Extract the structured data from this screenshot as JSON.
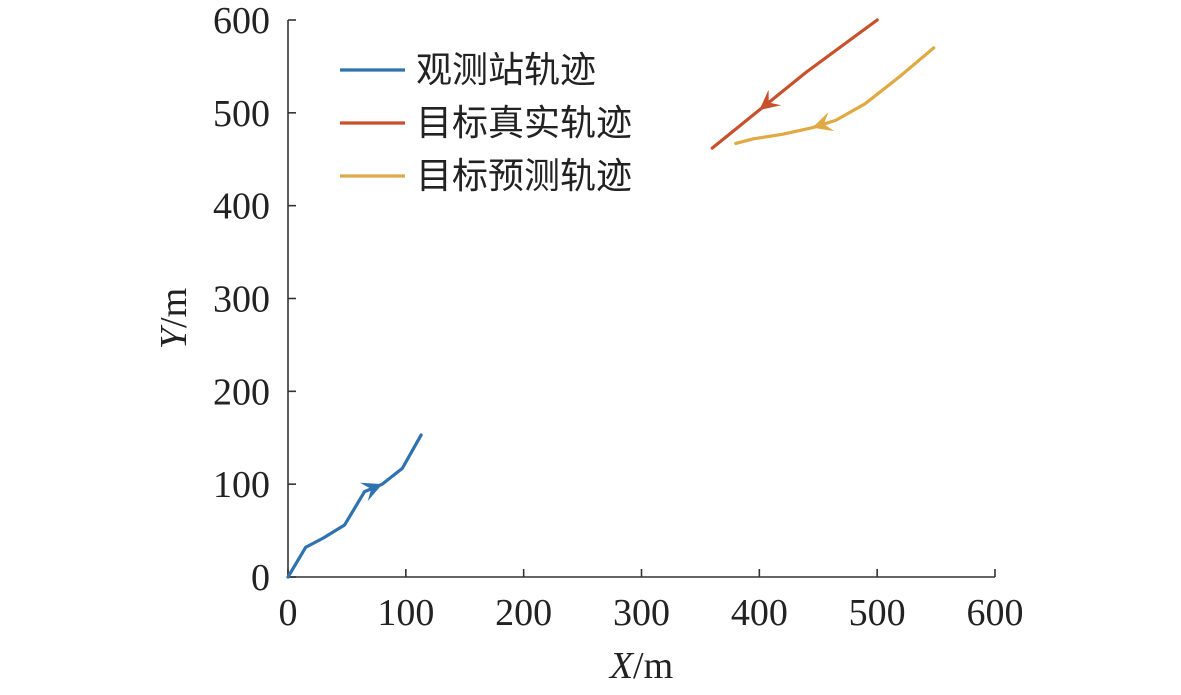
{
  "chart_data": {
    "type": "line",
    "xlabel": {
      "italic": "X",
      "unit": "/m"
    },
    "ylabel": {
      "italic": "Y",
      "unit": "/m"
    },
    "xlim": [
      0,
      600
    ],
    "ylim": [
      0,
      600
    ],
    "xticks": [
      "0",
      "100",
      "200",
      "300",
      "400",
      "500",
      "600"
    ],
    "yticks": [
      "0",
      "100",
      "200",
      "300",
      "400",
      "500",
      "600"
    ],
    "grid": false,
    "legend_position": "top-left",
    "series": [
      {
        "name": "观测站轨迹",
        "color": "#2e72b0",
        "x": [
          0,
          15,
          30,
          48,
          65,
          80,
          97,
          105,
          113
        ],
        "y": [
          0,
          32,
          42,
          56,
          92,
          100,
          117,
          135,
          153
        ],
        "arrow": {
          "at_index": 5,
          "direction": "forward"
        }
      },
      {
        "name": "目标真实轨迹",
        "color": "#c8502a",
        "x": [
          500,
          440,
          400,
          360
        ],
        "y": [
          600,
          544,
          503,
          462
        ],
        "arrow": {
          "at_index": 2,
          "direction": "forward"
        }
      },
      {
        "name": "目标预测轨迹",
        "color": "#e0a943",
        "x": [
          548,
          520,
          490,
          465,
          445,
          420,
          395,
          380
        ],
        "y": [
          570,
          540,
          510,
          492,
          484,
          477,
          472,
          467
        ],
        "arrow": {
          "at_index": 4,
          "direction": "forward"
        }
      }
    ]
  }
}
